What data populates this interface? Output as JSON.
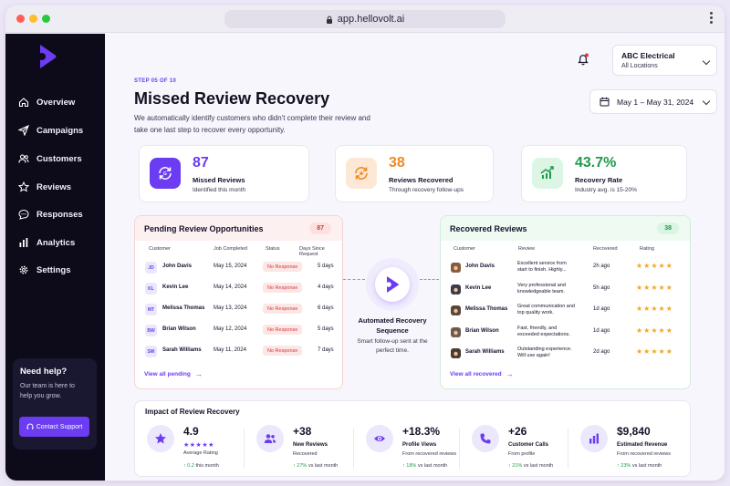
{
  "browser": {
    "url": "app.hellovolt.ai"
  },
  "sidebar": {
    "items": [
      {
        "label": "Overview",
        "icon": "home-icon"
      },
      {
        "label": "Campaigns",
        "icon": "send-icon"
      },
      {
        "label": "Customers",
        "icon": "users-icon"
      },
      {
        "label": "Reviews",
        "icon": "star-icon"
      },
      {
        "label": "Responses",
        "icon": "chat-icon"
      },
      {
        "label": "Analytics",
        "icon": "bar-chart-icon"
      },
      {
        "label": "Settings",
        "icon": "gear-icon"
      }
    ],
    "help": {
      "title": "Need help?",
      "text": "Our team is here to help you grow.",
      "button": "Contact Support"
    }
  },
  "header": {
    "account_name": "ABC Electrical",
    "account_scope": "All Locations",
    "date_range": "May 1 – May 31, 2024"
  },
  "page": {
    "step": "STEP 05 OF 10",
    "title": "Missed Review Recovery",
    "subtitle": "We automatically identify customers who didn't complete their review and take one last step to recover every opportunity."
  },
  "stats": [
    {
      "value": "87",
      "label": "Missed Reviews",
      "sub": "Identified this month",
      "color": "#6b3cf2"
    },
    {
      "value": "38",
      "label": "Reviews Recovered",
      "sub": "Through recovery follow-ups",
      "color": "#f08a24"
    },
    {
      "value": "43.7%",
      "label": "Recovery Rate",
      "sub": "Industry avg. is 15-20%",
      "color": "#1f9a4d"
    }
  ],
  "pending": {
    "title": "Pending Review Opportunities",
    "count": "87",
    "columns": [
      "Customer",
      "Job Completed",
      "Status",
      "Days Since Request"
    ],
    "rows": [
      {
        "initials": "JD",
        "name": "John Davis",
        "date": "May 15, 2024",
        "status": "No Response",
        "days": "5 days"
      },
      {
        "initials": "KL",
        "name": "Kevin Lee",
        "date": "May 14, 2024",
        "status": "No Response",
        "days": "4 days"
      },
      {
        "initials": "MT",
        "name": "Melissa Thomas",
        "date": "May 13, 2024",
        "status": "No Response",
        "days": "6 days"
      },
      {
        "initials": "BW",
        "name": "Brian Wilson",
        "date": "May 12, 2024",
        "status": "No Response",
        "days": "5 days"
      },
      {
        "initials": "SW",
        "name": "Sarah Williams",
        "date": "May 11, 2024",
        "status": "No Response",
        "days": "7 days"
      }
    ],
    "link": "View all pending"
  },
  "automation": {
    "title": "Automated Recovery Sequence",
    "sub": "Smart follow-up sent at the perfect time."
  },
  "recovered": {
    "title": "Recovered Reviews",
    "count": "38",
    "columns": [
      "Customer",
      "Review",
      "Recovered",
      "Rating"
    ],
    "rows": [
      {
        "name": "John Davis",
        "review": "Excellent service from start to finish. Highly...",
        "time": "2h ago",
        "rating": 5,
        "avatar_color": "#8a5a3c"
      },
      {
        "name": "Kevin Lee",
        "review": "Very professional and knowledgeable team.",
        "time": "5h ago",
        "rating": 5,
        "avatar_color": "#3c3c46"
      },
      {
        "name": "Melissa Thomas",
        "review": "Great communication and top quality work.",
        "time": "1d ago",
        "rating": 5,
        "avatar_color": "#5c4636"
      },
      {
        "name": "Brian Wilson",
        "review": "Fast, friendly, and exceeded expectations.",
        "time": "1d ago",
        "rating": 5,
        "avatar_color": "#6e5a4a"
      },
      {
        "name": "Sarah Williams",
        "review": "Outstanding experience. Will use again!",
        "time": "2d ago",
        "rating": 5,
        "avatar_color": "#4a3a30"
      }
    ],
    "link": "View all recovered"
  },
  "impact": {
    "title": "Impact of Review Recovery",
    "metrics": [
      {
        "value": "4.9",
        "label": "Average Rating",
        "sub": "",
        "trend": "0.2",
        "trend_suffix": "this month",
        "icon": "star-icon"
      },
      {
        "value": "+38",
        "label": "New Reviews",
        "sub": "Recovered",
        "trend": "27%",
        "trend_suffix": "vs last month",
        "icon": "users-icon"
      },
      {
        "value": "+18.3%",
        "label": "Profile Views",
        "sub": "From recovered reviews",
        "trend": "18%",
        "trend_suffix": "vs last month",
        "icon": "eye-icon"
      },
      {
        "value": "+26",
        "label": "Customer Calls",
        "sub": "From profile",
        "trend": "21%",
        "trend_suffix": "vs last month",
        "icon": "phone-icon"
      },
      {
        "value": "$9,840",
        "label": "Estimated Revenue",
        "sub": "From recovered reviews",
        "trend": "23%",
        "trend_suffix": "vs last month",
        "icon": "bar-chart-icon"
      }
    ]
  }
}
